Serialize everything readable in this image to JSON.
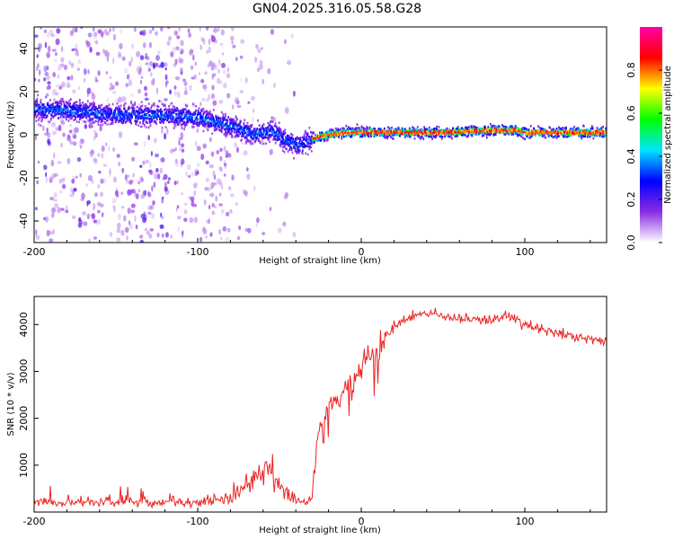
{
  "chart_data": [
    {
      "type": "heatmap",
      "title": "GN04.2025.316.05.58.G28",
      "xlabel": "Height of straight line (km)",
      "ylabel": "Frequency (Hz)",
      "xlim": [
        -200,
        150
      ],
      "ylim": [
        -50,
        50
      ],
      "x_ticks": [
        "-200",
        "-100",
        "0",
        "100"
      ],
      "y_ticks": [
        "-40",
        "-20",
        "0",
        "20",
        "40"
      ],
      "colorbar": {
        "label": "Normalized spectral amplitude",
        "range": [
          0,
          1
        ],
        "ticks": [
          "0.0",
          "0.2",
          "0.4",
          "0.6",
          "0.8"
        ],
        "colors": [
          "#ffffff",
          "#8a2be2",
          "#0000ff",
          "#00e5ff",
          "#00ff00",
          "#ffff00",
          "#ff0000",
          "#ff00aa"
        ]
      },
      "ridge": {
        "x": [
          -200,
          -175,
          -150,
          -125,
          -100,
          -80,
          -65,
          -55,
          -45,
          -38,
          -30,
          -20,
          -10,
          0,
          10,
          50,
          80,
          95,
          100,
          125,
          150
        ],
        "freq": [
          12,
          11,
          9,
          9,
          8,
          4,
          0,
          2,
          -3,
          -5,
          -2,
          0,
          1,
          1,
          1,
          1,
          2,
          2,
          1,
          1,
          1
        ]
      }
    },
    {
      "type": "line",
      "xlabel": "Height of straight line (km)",
      "ylabel": "SNR (10 * v/v)",
      "xlim": [
        -200,
        150
      ],
      "ylim": [
        0,
        4600
      ],
      "x_ticks": [
        "-200",
        "-100",
        "0",
        "100"
      ],
      "y_ticks": [
        "1000",
        "2000",
        "3000",
        "4000"
      ],
      "series": [
        {
          "name": "SNR",
          "color": "#ee2222",
          "x": [
            -200,
            -180,
            -160,
            -140,
            -120,
            -100,
            -80,
            -70,
            -62,
            -57,
            -52,
            -45,
            -40,
            -35,
            -30,
            -27,
            -25,
            -20,
            -15,
            -10,
            -5,
            0,
            5,
            10,
            15,
            20,
            30,
            40,
            60,
            80,
            90,
            100,
            120,
            140,
            150
          ],
          "values": [
            200,
            210,
            230,
            240,
            200,
            210,
            300,
            550,
            800,
            1000,
            650,
            400,
            250,
            200,
            350,
            1500,
            1900,
            2200,
            2450,
            2700,
            2750,
            3050,
            3350,
            3450,
            3750,
            3950,
            4150,
            4250,
            4150,
            4100,
            4200,
            4000,
            3800,
            3700,
            3600
          ]
        }
      ]
    }
  ]
}
